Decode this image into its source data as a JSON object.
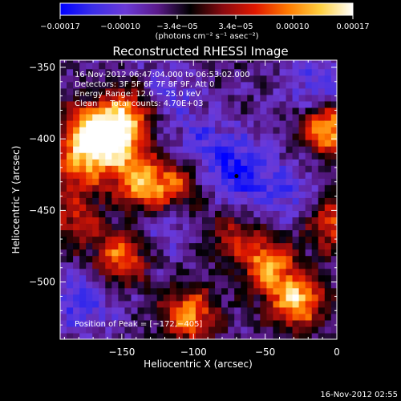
{
  "chart_data": {
    "type": "heatmap",
    "title": "Reconstructed RHESSI Image",
    "xlabel": "Heliocentric X (arcsec)",
    "ylabel": "Heliocentric Y (arcsec)",
    "xlim": [
      -193,
      0
    ],
    "ylim": [
      -540,
      -345
    ],
    "xticks": [
      {
        "value": -150,
        "label": "−150"
      },
      {
        "value": -100,
        "label": "−100"
      },
      {
        "value": -50,
        "label": "−50"
      },
      {
        "value": 0,
        "label": "0"
      }
    ],
    "yticks": [
      {
        "value": -350,
        "label": "−350"
      },
      {
        "value": -400,
        "label": "−400"
      },
      {
        "value": -450,
        "label": "−450"
      },
      {
        "value": -500,
        "label": "−500"
      }
    ],
    "colorbar": {
      "range": [
        -0.00017,
        0.00017
      ],
      "ticks": [
        {
          "value": -0.00017,
          "label": "−0.00017"
        },
        {
          "value": -0.0001,
          "label": "−0.00010"
        },
        {
          "value": -3.4e-05,
          "label": "−3.4e−05"
        },
        {
          "value": 3.4e-05,
          "label": "3.4e−05"
        },
        {
          "value": 0.0001,
          "label": "0.00010"
        },
        {
          "value": 0.00017,
          "label": "0.00017"
        }
      ],
      "unit_label": "(photons cm⁻² s⁻¹ asec⁻²)",
      "colors": [
        "#0000ff",
        "#3b2ee8",
        "#6b3ad8",
        "#5a1a8a",
        "#000000",
        "#8a0a10",
        "#e01800",
        "#ff7a00",
        "#ffd040",
        "#ffffff"
      ]
    },
    "annotations": [
      "16-Nov-2012 06:47:04.000 to 06:53:02.000",
      "Detectors: 3F 5F 6F 7F 8F 9F, Att 0",
      "Energy Range: 12.0 − 25.0 keV",
      "Clean     Total counts: 4.70E+03"
    ],
    "peak_label": "Position of Peak = [−172,−405]",
    "peak": {
      "x": -172,
      "y": -405
    },
    "marker": {
      "x": -70,
      "y": -426
    },
    "emission_sources": [
      {
        "x": -175,
        "y": -398,
        "strength": 1.0
      },
      {
        "x": -150,
        "y": -385,
        "strength": 0.8
      },
      {
        "x": -155,
        "y": -410,
        "strength": 0.7
      },
      {
        "x": -138,
        "y": -435,
        "strength": 0.75
      },
      {
        "x": -115,
        "y": -435,
        "strength": 0.55
      },
      {
        "x": -183,
        "y": -425,
        "strength": 0.55
      },
      {
        "x": -185,
        "y": -460,
        "strength": 0.45
      },
      {
        "x": -153,
        "y": -485,
        "strength": 0.7
      },
      {
        "x": -105,
        "y": -525,
        "strength": 0.75
      },
      {
        "x": -50,
        "y": -490,
        "strength": 0.75
      },
      {
        "x": -30,
        "y": -515,
        "strength": 0.9
      },
      {
        "x": -8,
        "y": -395,
        "strength": 0.9
      },
      {
        "x": -5,
        "y": -460,
        "strength": 0.6
      },
      {
        "x": -75,
        "y": -470,
        "strength": 0.4
      }
    ],
    "depressions": [
      {
        "x": -70,
        "y": -425,
        "strength": 0.9
      },
      {
        "x": -15,
        "y": -365,
        "strength": 0.7
      },
      {
        "x": -180,
        "y": -515,
        "strength": 0.75
      },
      {
        "x": -125,
        "y": -460,
        "strength": 0.55
      },
      {
        "x": -95,
        "y": -405,
        "strength": 0.5
      },
      {
        "x": -35,
        "y": -440,
        "strength": 0.6
      },
      {
        "x": -120,
        "y": -370,
        "strength": 0.45
      }
    ]
  },
  "footer_date": "16-Nov-2012 02:55"
}
